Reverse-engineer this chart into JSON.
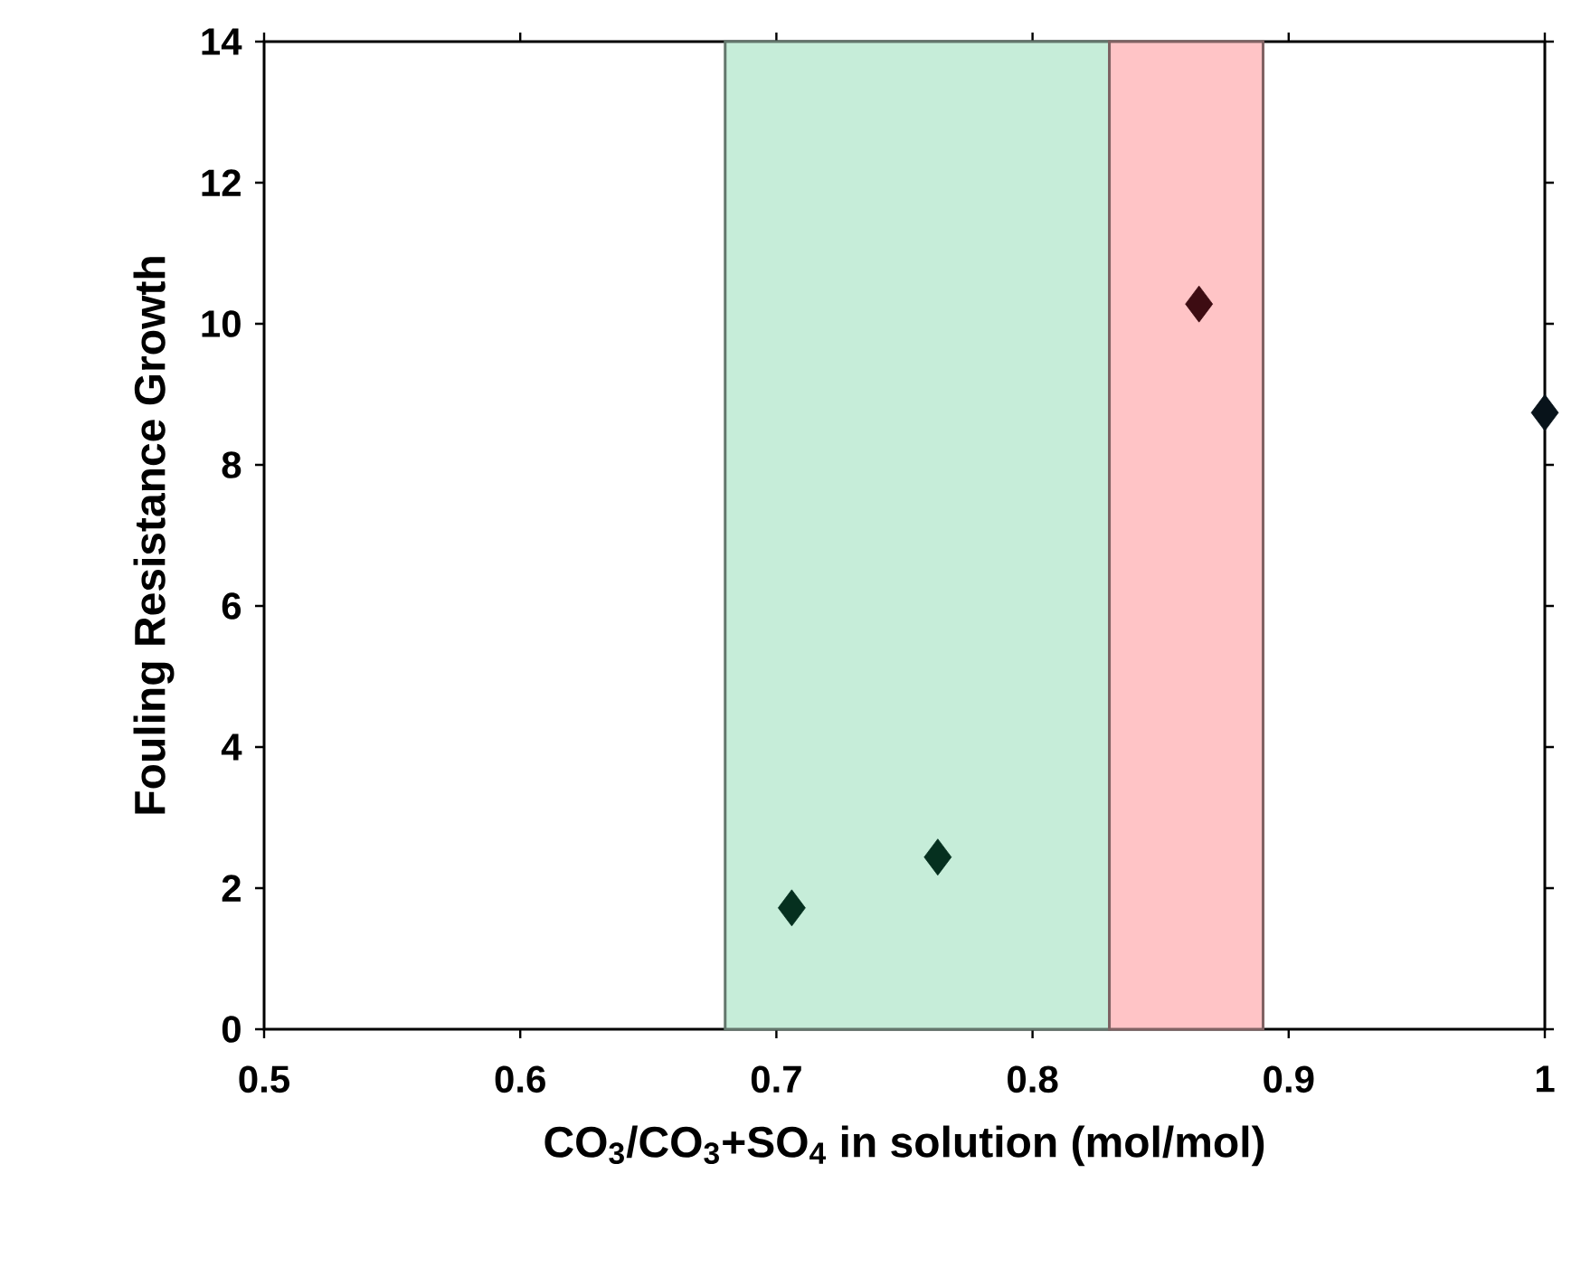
{
  "chart_data": {
    "type": "scatter",
    "xlabel": "CO$_{3}$/CO$_{3}$+SO$_{4}$ in solution (mol/mol)",
    "ylabel": "Fouling Resistance Growth",
    "x": [
      0.706,
      0.763,
      0.865,
      1.0
    ],
    "values": [
      1.72,
      2.44,
      10.28,
      8.74
    ],
    "colors": [
      "#05301f",
      "#05301f",
      "#3d0c12",
      "#08131a"
    ],
    "marker": "diamond",
    "xlim": [
      0.5,
      1.0
    ],
    "xticks": [
      0.5,
      0.6,
      0.7,
      0.8,
      0.9,
      1
    ],
    "ylim": [
      0,
      14
    ],
    "yticks": [
      0,
      2,
      4,
      6,
      8,
      10,
      12,
      14
    ],
    "bands": [
      {
        "axis": "x",
        "from": 0.68,
        "to": 0.83,
        "color": "#c6edd9"
      },
      {
        "axis": "x",
        "from": 0.83,
        "to": 0.89,
        "color": "#ffc4c6"
      }
    ]
  }
}
